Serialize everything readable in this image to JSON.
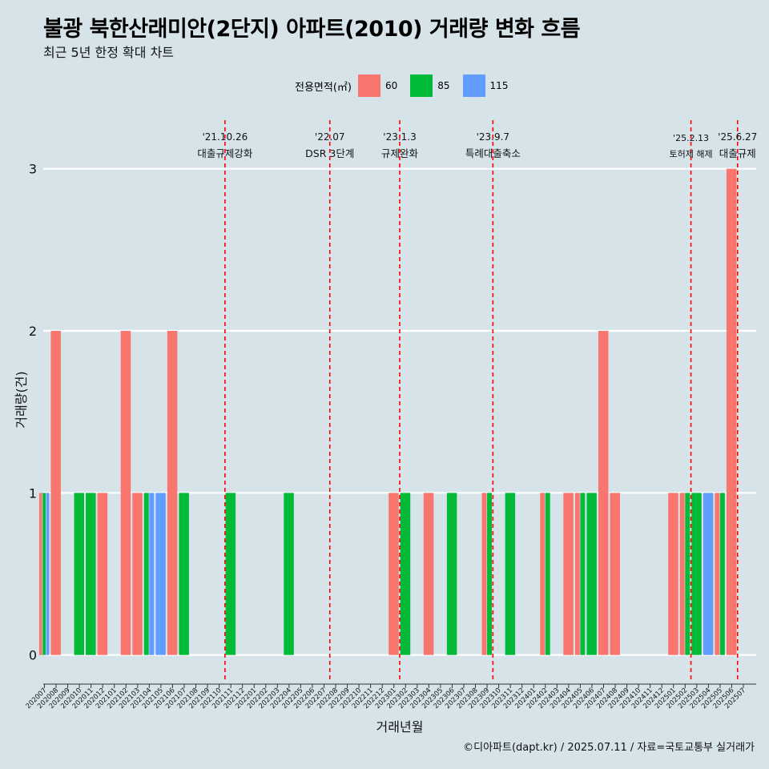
{
  "title": "불광 북한산래미안(2단지) 아파트(2010) 거래량 변화 흐름",
  "subtitle": "최근 5년 한정 확대 차트",
  "caption": "©디아파트(dapt.kr) / 2025.07.11 / 자료=국토교통부 실거래가",
  "legend": {
    "title": "전용면적(㎡)",
    "items": [
      {
        "label": "60",
        "color": "#F8766D"
      },
      {
        "label": "85",
        "color": "#00BA38"
      },
      {
        "label": "115",
        "color": "#619CFF"
      }
    ]
  },
  "chart_data": {
    "type": "bar",
    "xlabel": "거래년월",
    "ylabel": "거래량(건)",
    "ylim": [
      0,
      3
    ],
    "yticks": [
      0,
      1,
      2,
      3
    ],
    "categories": [
      "202007",
      "202008",
      "202009",
      "202010",
      "202011",
      "202012",
      "202101",
      "202102",
      "202103",
      "202104",
      "202105",
      "202106",
      "202107",
      "202108",
      "202109",
      "202110",
      "202111",
      "202112",
      "202201",
      "202202",
      "202203",
      "202204",
      "202205",
      "202206",
      "202207",
      "202208",
      "202209",
      "202210",
      "202211",
      "202212",
      "202301",
      "202302",
      "202303",
      "202304",
      "202305",
      "202306",
      "202307",
      "202308",
      "202309",
      "202310",
      "202311",
      "202312",
      "202401",
      "202402",
      "202403",
      "202404",
      "202405",
      "202406",
      "202407",
      "202408",
      "202409",
      "202410",
      "202411",
      "202412",
      "202501",
      "202502",
      "202503",
      "202504",
      "202505",
      "202506",
      "202507"
    ],
    "series": [
      {
        "name": "60",
        "color": "#F8766D",
        "values": [
          1,
          2,
          0,
          0,
          0,
          1,
          0,
          2,
          1,
          0,
          0,
          2,
          0,
          0,
          0,
          0,
          0,
          0,
          0,
          0,
          0,
          0,
          0,
          0,
          0,
          0,
          0,
          0,
          0,
          0,
          1,
          0,
          0,
          1,
          0,
          0,
          0,
          0,
          1,
          0,
          0,
          0,
          0,
          1,
          0,
          1,
          1,
          0,
          2,
          1,
          0,
          0,
          0,
          0,
          1,
          1,
          0,
          0,
          1,
          3,
          0
        ]
      },
      {
        "name": "85",
        "color": "#00BA38",
        "values": [
          1,
          0,
          0,
          1,
          1,
          0,
          0,
          0,
          0,
          1,
          0,
          0,
          1,
          0,
          0,
          0,
          1,
          0,
          0,
          0,
          0,
          1,
          0,
          0,
          0,
          0,
          0,
          0,
          0,
          0,
          0,
          1,
          0,
          0,
          0,
          1,
          0,
          0,
          1,
          0,
          1,
          0,
          0,
          1,
          0,
          0,
          1,
          1,
          0,
          0,
          0,
          0,
          0,
          0,
          0,
          1,
          1,
          0,
          1,
          0,
          0
        ]
      },
      {
        "name": "115",
        "color": "#619CFF",
        "values": [
          1,
          0,
          0,
          0,
          0,
          0,
          0,
          0,
          0,
          1,
          1,
          0,
          0,
          0,
          0,
          0,
          0,
          0,
          0,
          0,
          0,
          0,
          0,
          0,
          0,
          0,
          0,
          0,
          0,
          0,
          0,
          0,
          0,
          0,
          0,
          0,
          0,
          0,
          0,
          0,
          0,
          0,
          0,
          0,
          0,
          0,
          0,
          0,
          0,
          0,
          0,
          0,
          0,
          0,
          0,
          0,
          0,
          1,
          0,
          0,
          0
        ]
      }
    ],
    "annotations": [
      {
        "position": 15.5,
        "date": "'21.10.26",
        "label": "대출규제강화"
      },
      {
        "position": 24.5,
        "date": "'22.07",
        "label": "DSR 3단계"
      },
      {
        "position": 30.5,
        "date": "'23.1.3",
        "label": "규제완화"
      },
      {
        "position": 38.5,
        "date": "'23.9.7",
        "label": "특례대출축소"
      },
      {
        "position": 55.5,
        "date": "'25.2.13",
        "label": "토허제 해제"
      },
      {
        "position": 59.5,
        "date": "'25.6.27",
        "label": "대출규제"
      }
    ]
  }
}
